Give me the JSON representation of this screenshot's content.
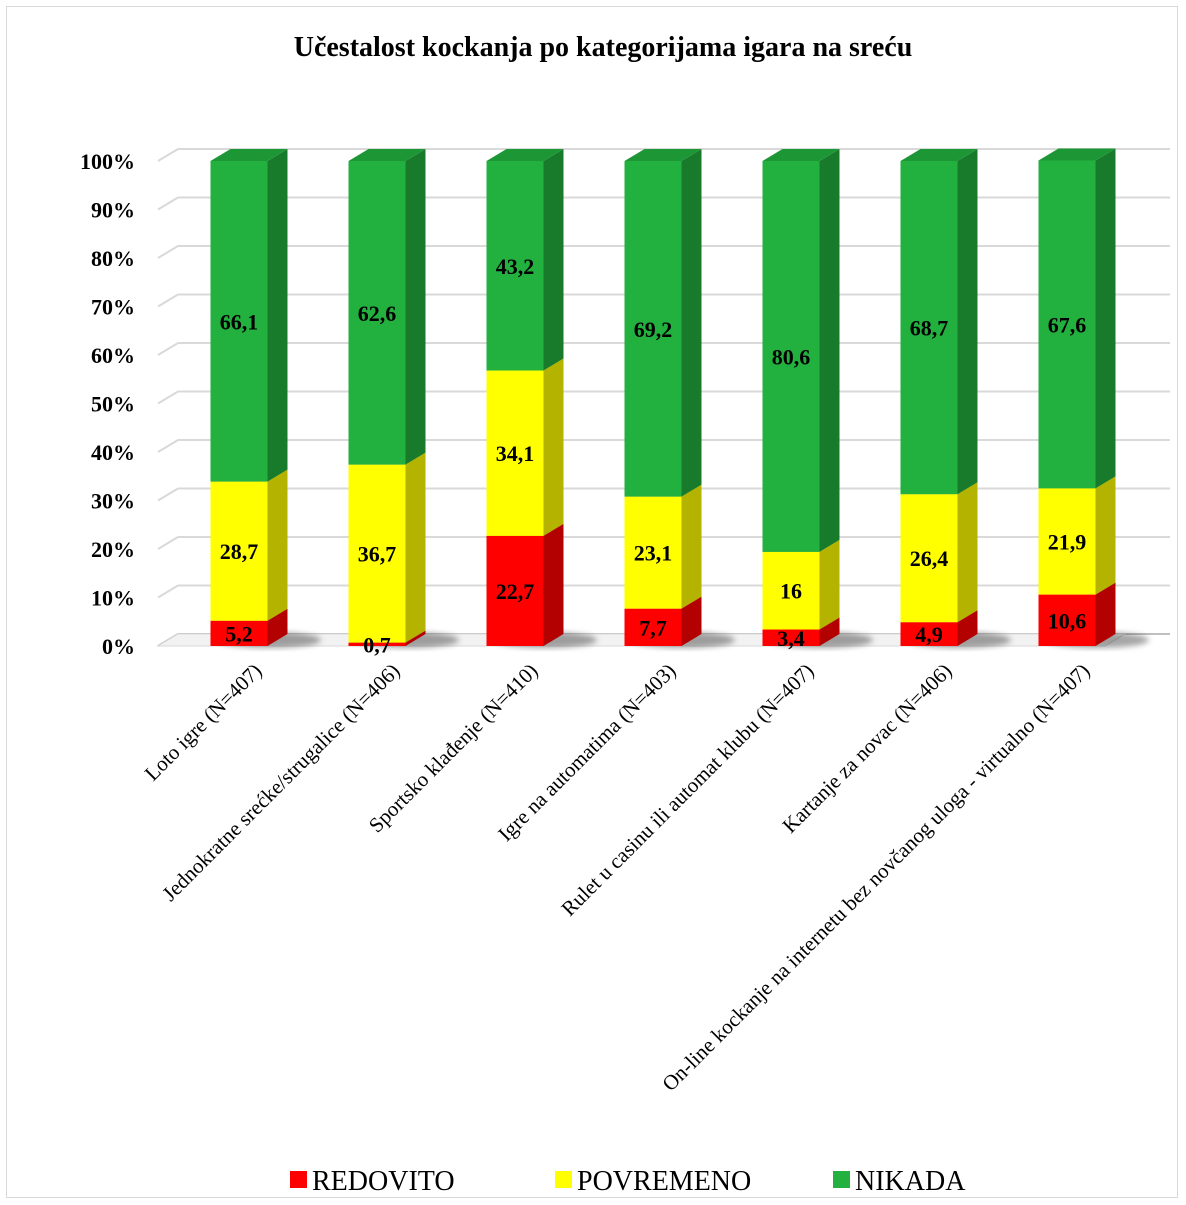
{
  "chart_data": {
    "type": "bar",
    "stacked": true,
    "percent_stacked": true,
    "style": "3d",
    "title": "Učestalost kockanja po kategorijama igara na sreću",
    "categories": [
      "Loto igre (N=407)",
      "Jednokratne srećke/strugalice (N=406)",
      "Sportsko klađenje (N=410)",
      "Igre na automatima (N=403)",
      "Rulet u casinu ili automat klubu (N=407)",
      "Kartanje za novac (N=406)",
      "On-line kockanje na internetu bez novčanog uloga - virtualno (N=407)"
    ],
    "series": [
      {
        "name": "REDOVITO",
        "color": "#ff0000",
        "labels": [
          "5,2",
          "0,7",
          "22,7",
          "7,7",
          "3,4",
          "4,9",
          "10,6"
        ],
        "values": [
          5.2,
          0.7,
          22.7,
          7.7,
          3.4,
          4.9,
          10.6
        ]
      },
      {
        "name": "POVREMENO",
        "color": "#ffff00",
        "labels": [
          "28,7",
          "36,7",
          "34,1",
          "23,1",
          "16",
          "26,4",
          "21,9"
        ],
        "values": [
          28.7,
          36.7,
          34.1,
          23.1,
          16,
          26.4,
          21.9
        ]
      },
      {
        "name": "NIKADA",
        "color": "#22b03f",
        "labels": [
          "66,1",
          "62,6",
          "43,2",
          "69,2",
          "80,6",
          "68,7",
          "67,6"
        ],
        "values": [
          66.1,
          62.6,
          43.2,
          69.2,
          80.6,
          68.7,
          67.6
        ]
      }
    ],
    "y_ticks": [
      "0%",
      "10%",
      "20%",
      "30%",
      "40%",
      "50%",
      "60%",
      "70%",
      "80%",
      "90%",
      "100%"
    ],
    "ylim": [
      0,
      100
    ],
    "grid": true,
    "legend_position": "bottom"
  }
}
